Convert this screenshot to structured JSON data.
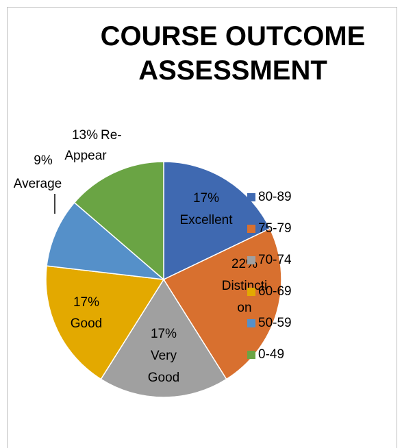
{
  "chart_data": {
    "type": "pie",
    "title": "COURSE OUTCOME ASSESSMENT",
    "categories": [
      "80-89",
      "75-79",
      "70-74",
      "60-69",
      "50-59",
      "0-49"
    ],
    "values": [
      17,
      22,
      17,
      17,
      9,
      13
    ],
    "value_labels": [
      "17%",
      "22%",
      "17%",
      "17%",
      "9%",
      "13%"
    ],
    "slice_labels": [
      [
        "Excellent"
      ],
      [
        "Distincti",
        "on"
      ],
      [
        "Very",
        "Good"
      ],
      [
        "Good"
      ],
      [
        "Average"
      ],
      [
        "Re-",
        "Appear"
      ]
    ],
    "colors": [
      "#3f69b1",
      "#d8702f",
      "#a0a0a0",
      "#e3a900",
      "#5590c9",
      "#6aa444"
    ],
    "legend": "right"
  }
}
